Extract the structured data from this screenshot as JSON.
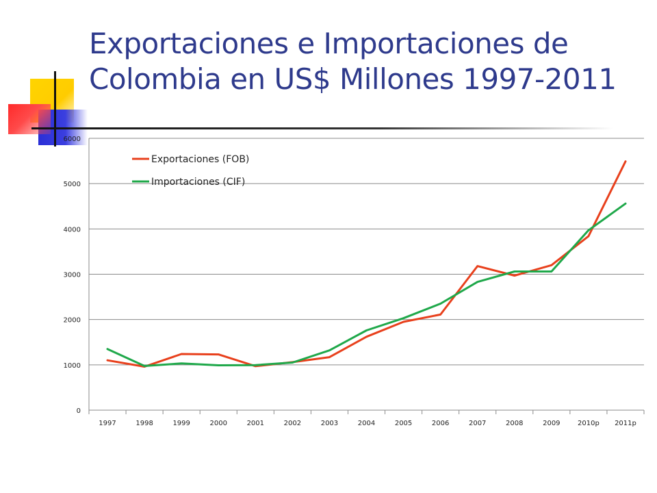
{
  "title": "Exportaciones e Importaciones de Colombia en US$ Millones 1997-2011",
  "chart_data": {
    "type": "line",
    "title": "",
    "xlabel": "",
    "ylabel": "",
    "categories": [
      "1997",
      "1998",
      "1999",
      "2000",
      "2001",
      "2002",
      "2003",
      "2004",
      "2005",
      "2006",
      "2007",
      "2008",
      "2009",
      "2010p",
      "2011p"
    ],
    "ylim": [
      0,
      6000
    ],
    "yticks": [
      0,
      1000,
      2000,
      3000,
      4000,
      5000,
      6000
    ],
    "grid": "horizontal",
    "legend_position": "top-left",
    "series": [
      {
        "name": "Exportaciones (FOB)",
        "color": "#e8401c",
        "values": [
          1100,
          960,
          1240,
          1230,
          970,
          1060,
          1170,
          1620,
          1950,
          2110,
          3180,
          2970,
          3200,
          3840,
          5490
        ]
      },
      {
        "name": "Importaciones (CIF)",
        "color": "#1fa84a",
        "values": [
          1350,
          975,
          1030,
          990,
          995,
          1050,
          1320,
          1760,
          2030,
          2350,
          2830,
          3060,
          3060,
          3970,
          4560
        ]
      }
    ]
  }
}
